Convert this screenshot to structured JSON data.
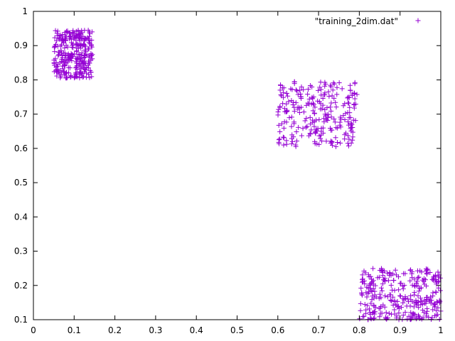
{
  "chart_data": {
    "type": "scatter",
    "title": "",
    "xlabel": "",
    "ylabel": "",
    "xlim": [
      0,
      1
    ],
    "ylim": [
      0.1,
      1
    ],
    "x_ticks": [
      "0",
      "0.1",
      "0.2",
      "0.3",
      "0.4",
      "0.5",
      "0.6",
      "0.7",
      "0.8",
      "0.9",
      "1"
    ],
    "y_ticks": [
      "0.1",
      "0.2",
      "0.3",
      "0.4",
      "0.5",
      "0.6",
      "0.7",
      "0.8",
      "0.9",
      "1"
    ],
    "grid": false,
    "legend_position": "top-right",
    "marker": "plus",
    "color": "#9400d3",
    "series": [
      {
        "name": "\"training_2dim.dat\"",
        "clusters": [
          {
            "x_range": [
              0.05,
              0.145
            ],
            "y_range": [
              0.805,
              0.945
            ],
            "count": 300
          },
          {
            "x_range": [
              0.6,
              0.795
            ],
            "y_range": [
              0.605,
              0.8
            ],
            "count": 260
          },
          {
            "x_range": [
              0.8,
              1.0
            ],
            "y_range": [
              0.1,
              0.25
            ],
            "count": 300
          }
        ]
      }
    ]
  }
}
